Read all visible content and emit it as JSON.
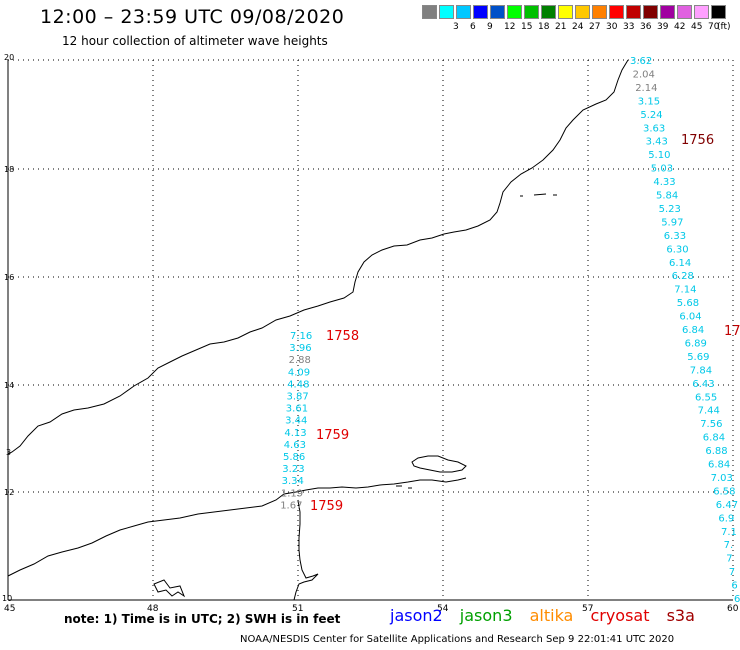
{
  "header": {
    "title": "12:00 – 23:59 UTC 09/08/2020",
    "subtitle": "12 hour collection of altimeter wave heights"
  },
  "legend": {
    "unit": "(ft)",
    "bins": [
      {
        "label": "",
        "color": "#808080"
      },
      {
        "label": "3",
        "color": "#00ffff"
      },
      {
        "label": "6",
        "color": "#00c8ff"
      },
      {
        "label": "9",
        "color": "#0000ff"
      },
      {
        "label": "12",
        "color": "#0050c8"
      },
      {
        "label": "15",
        "color": "#00ff00"
      },
      {
        "label": "18",
        "color": "#00c000"
      },
      {
        "label": "21",
        "color": "#008000"
      },
      {
        "label": "24",
        "color": "#ffff00"
      },
      {
        "label": "27",
        "color": "#ffc800"
      },
      {
        "label": "30",
        "color": "#ff8000"
      },
      {
        "label": "33",
        "color": "#ff0000"
      },
      {
        "label": "36",
        "color": "#c00000"
      },
      {
        "label": "39",
        "color": "#800000"
      },
      {
        "label": "42",
        "color": "#a000a0"
      },
      {
        "label": "45",
        "color": "#e060e0"
      },
      {
        "label": "70",
        "color": "#ffa0ff"
      },
      {
        "label": "",
        "color": "#000000"
      }
    ]
  },
  "map": {
    "lat_labels": [
      "20",
      "18",
      "16",
      "14",
      "12",
      "10"
    ],
    "lon_labels": [
      "45",
      "48",
      "51",
      "54",
      "57",
      "60"
    ],
    "edge_left_label": "3"
  },
  "tracks": {
    "track_1756": {
      "time": "1756",
      "time_color": "#800000",
      "values": [
        "3.62",
        "2.04",
        "2.14",
        "3.15",
        "5.24",
        "3.63",
        "3.43",
        "5.10",
        "5.03",
        "4.33",
        "5.84",
        "5.23",
        "5.97",
        "6.33",
        "6.30",
        "6.14",
        "6.28",
        "7.14",
        "5.68",
        "6.04",
        "6.84",
        "6.89",
        "5.69",
        "7.84",
        "6.43",
        "6.55",
        "7.44",
        "7.56",
        "6.84",
        "6.88",
        "6.84",
        "7.03",
        "6.58",
        "6.47",
        "6.9",
        "7.1",
        "7.",
        "7",
        "7",
        "6",
        "6"
      ],
      "colors": [
        "c",
        "g",
        "g",
        "c",
        "c",
        "c",
        "c",
        "c",
        "c",
        "c",
        "c",
        "c",
        "c",
        "c",
        "c",
        "c",
        "c",
        "c",
        "c",
        "c",
        "c",
        "c",
        "c",
        "c",
        "c",
        "c",
        "c",
        "c",
        "c",
        "c",
        "c",
        "c",
        "c",
        "c",
        "c",
        "c",
        "c",
        "c",
        "c",
        "c",
        "c"
      ]
    },
    "track_edge_time": "17",
    "track_1758": {
      "time": "1758",
      "time_color": "#e00000",
      "values": [
        "7.16",
        "3.96",
        "2.88",
        "4.09",
        "4.48",
        "3.87",
        "3.61",
        "3.44",
        "4.13",
        "4.63",
        "5.86",
        "3.23",
        "3.34",
        "1.19",
        "1.67"
      ],
      "colors": [
        "c",
        "c",
        "g",
        "c",
        "c",
        "c",
        "c",
        "c",
        "c",
        "c",
        "c",
        "c",
        "c",
        "g",
        "g"
      ]
    },
    "time_1759_a": "1759",
    "time_1759_b": "1759"
  },
  "footer": {
    "note": "note:  1) Time is in UTC;  2) SWH is in feet",
    "satellites": [
      {
        "name": "jason2",
        "color": "#0000ff"
      },
      {
        "name": "jason3",
        "color": "#00a000"
      },
      {
        "name": "altika",
        "color": "#ff8c00"
      },
      {
        "name": "cryosat",
        "color": "#e00000"
      },
      {
        "name": "s3a",
        "color": "#a00000"
      }
    ],
    "credit": "NOAA/NESDIS Center for Satellite Applications and Research   Sep  9 22:01:41 UTC 2020"
  }
}
